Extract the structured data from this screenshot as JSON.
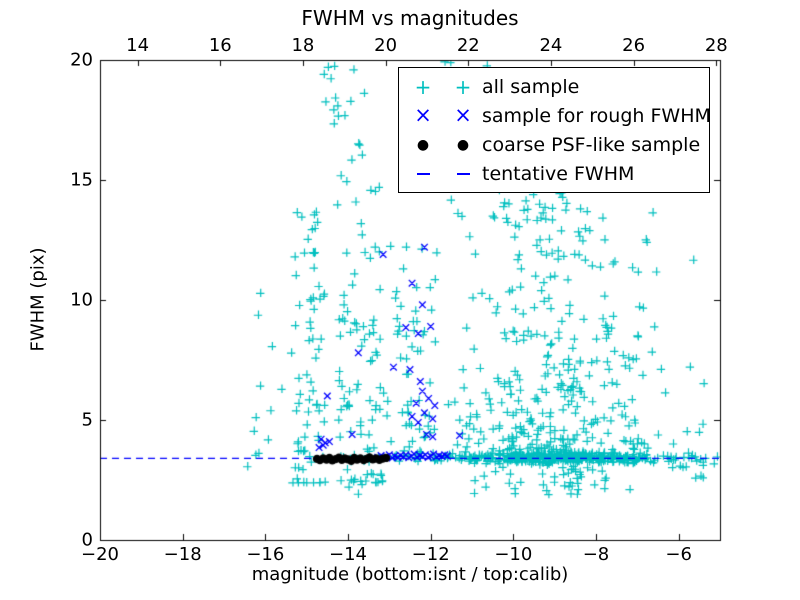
{
  "title": "FWHM vs magnitudes",
  "axes": {
    "xlabel": "magnitude (bottom:isnt / top:calib)",
    "ylabel": "FWHM (pix)",
    "x_bottom": {
      "range": [
        -20,
        -5
      ],
      "ticks": [
        {
          "v": -20,
          "label": "−20"
        },
        {
          "v": -18,
          "label": "−18"
        },
        {
          "v": -16,
          "label": "−16"
        },
        {
          "v": -14,
          "label": "−14"
        },
        {
          "v": -12,
          "label": "−12"
        },
        {
          "v": -10,
          "label": "−10"
        },
        {
          "v": -8,
          "label": "−8"
        },
        {
          "v": -6,
          "label": "−6"
        }
      ]
    },
    "x_top": {
      "range": [
        13.09,
        28.09
      ],
      "ticks": [
        {
          "v": 14,
          "label": "14"
        },
        {
          "v": 16,
          "label": "16"
        },
        {
          "v": 18,
          "label": "18"
        },
        {
          "v": 20,
          "label": "20"
        },
        {
          "v": 22,
          "label": "22"
        },
        {
          "v": 24,
          "label": "24"
        },
        {
          "v": 26,
          "label": "26"
        },
        {
          "v": 28,
          "label": "28"
        }
      ]
    },
    "y": {
      "range": [
        0,
        20
      ],
      "ticks": [
        {
          "v": 0,
          "label": "0"
        },
        {
          "v": 5,
          "label": "5"
        },
        {
          "v": 10,
          "label": "10"
        },
        {
          "v": 15,
          "label": "15"
        },
        {
          "v": 20,
          "label": "20"
        }
      ]
    }
  },
  "legend": {
    "items": [
      {
        "marker": "plus",
        "color": "#00bfbf",
        "label": "all sample"
      },
      {
        "marker": "x",
        "color": "#0000ff",
        "label": "sample for rough FWHM"
      },
      {
        "marker": "dot",
        "color": "#000000",
        "label": "coarse PSF-like sample"
      },
      {
        "marker": "dash",
        "color": "#0000ff",
        "label": "tentative FWHM"
      }
    ]
  },
  "chart_data": {
    "type": "scatter",
    "title": "FWHM vs magnitudes",
    "xlabel": "magnitude (bottom:isnt / top:calib)",
    "ylabel": "FWHM (pix)",
    "x_bottom_range": [
      -20,
      -5
    ],
    "x_top_range": [
      13.09,
      28.09
    ],
    "ylim": [
      0,
      20
    ],
    "grid": false,
    "legend_position": "upper right",
    "tentative_fwhm": 3.4,
    "seed": 7,
    "series": [
      {
        "name": "all sample",
        "marker": "+",
        "color": "#00bfbf",
        "note": "~1100-point dense cloud, summarized as density clusters (mag ranges on bottom isnt axis, FWHM in pix)",
        "clusters": [
          {
            "n": 13,
            "mag": [
              -16.45,
              -15.35
            ],
            "fwhm": [
              2.8,
              10.5
            ],
            "pow": 1.2
          },
          {
            "n": 72,
            "mag": [
              -15.35,
              -14.55
            ],
            "fwhm": [
              2.4,
              13.8
            ],
            "pow": 2.1
          },
          {
            "n": 6,
            "mag": [
              -14.85,
              -13.95
            ],
            "fwhm": [
              16.5,
              19.8
            ],
            "pow": 1
          },
          {
            "n": 95,
            "mag": [
              -14.3,
              -13.15
            ],
            "fwhm": [
              2.4,
              15.5
            ],
            "pow": 2.0
          },
          {
            "n": 12,
            "mag": [
              -14.35,
              -13.45
            ],
            "fwhm": [
              15.0,
              19.9
            ],
            "pow": 1
          },
          {
            "n": 16,
            "mag": [
              -13.15,
              -12.6
            ],
            "fwhm": [
              3.6,
              13.0
            ],
            "pow": 1.3
          },
          {
            "n": 42,
            "mag": [
              -12.6,
              -11.85
            ],
            "fwhm": [
              3.6,
              12.6
            ],
            "pow": 1.8
          },
          {
            "n": 430,
            "mag": [
              -11.8,
              -6.3
            ],
            "tri": true,
            "fwhm": [
              3.45,
              15.0
            ],
            "pow": 2.6
          },
          {
            "n": 28,
            "mag": [
              -11.7,
              -8.6
            ],
            "fwhm": [
              13.0,
              20.0
            ],
            "pow": 1
          },
          {
            "n": 18,
            "mag": [
              -7.3,
              -5.15
            ],
            "fwhm": [
              3.7,
              12.4
            ],
            "pow": 1.6
          },
          {
            "n": 120,
            "mag": [
              -12.95,
              -5.05
            ],
            "gauss": [
              3.42,
              0.09
            ]
          },
          {
            "n": 230,
            "mag": [
              -11.7,
              -6.5
            ],
            "tri": true,
            "gauss": [
              3.42,
              0.1
            ]
          },
          {
            "n": 45,
            "mag": [
              -11.3,
              -6.3
            ],
            "tri": true,
            "fwhm": [
              1.7,
              3.1
            ],
            "pow": 0.6
          },
          {
            "n": 8,
            "mag": [
              -6.3,
              -5.4
            ],
            "fwhm": [
              2.5,
              3.2
            ],
            "pow": 1
          },
          {
            "n": 4,
            "mag": [
              -14.2,
              -13.4
            ],
            "fwhm": [
              1.9,
              2.7
            ],
            "pow": 1
          }
        ]
      },
      {
        "name": "sample for rough FWHM",
        "marker": "x",
        "color": "#0000ff",
        "points": [
          [
            -14.7,
            3.85
          ],
          [
            -14.65,
            4.2
          ],
          [
            -14.6,
            3.95
          ],
          [
            -14.55,
            4.05
          ],
          [
            -14.45,
            4.1
          ],
          [
            -14.5,
            6.0
          ],
          [
            -13.9,
            4.4
          ],
          [
            -13.75,
            7.8
          ],
          [
            -13.15,
            11.9
          ],
          [
            -12.9,
            7.2
          ],
          [
            -12.6,
            8.85
          ],
          [
            -12.5,
            7.1
          ],
          [
            -12.45,
            10.7
          ],
          [
            -12.45,
            5.15
          ],
          [
            -12.35,
            5.7
          ],
          [
            -12.3,
            8.6
          ],
          [
            -12.3,
            4.9
          ],
          [
            -12.25,
            6.6
          ],
          [
            -12.2,
            9.8
          ],
          [
            -12.2,
            6.2
          ],
          [
            -12.15,
            12.2
          ],
          [
            -12.15,
            5.3
          ],
          [
            -12.1,
            4.4
          ],
          [
            -12.05,
            5.9
          ],
          [
            -12.0,
            8.9
          ],
          [
            -11.95,
            5.05
          ],
          [
            -11.95,
            4.3
          ],
          [
            -11.9,
            5.6
          ],
          [
            -11.3,
            4.35
          ],
          [
            -13.28,
            3.45
          ],
          [
            -13.2,
            3.52
          ],
          [
            -13.14,
            3.4
          ],
          [
            -13.07,
            3.48
          ],
          [
            -13.0,
            3.55
          ],
          [
            -12.93,
            3.42
          ],
          [
            -12.87,
            3.5
          ],
          [
            -12.8,
            3.44
          ],
          [
            -12.73,
            3.53
          ],
          [
            -12.66,
            3.46
          ],
          [
            -12.6,
            3.55
          ],
          [
            -12.53,
            3.43
          ],
          [
            -12.46,
            3.5
          ],
          [
            -12.4,
            3.58
          ],
          [
            -12.33,
            3.45
          ],
          [
            -12.26,
            3.52
          ],
          [
            -12.2,
            3.47
          ],
          [
            -12.13,
            3.55
          ],
          [
            -12.06,
            3.44
          ],
          [
            -12.0,
            3.5
          ],
          [
            -11.93,
            3.58
          ],
          [
            -11.86,
            3.46
          ],
          [
            -11.8,
            3.52
          ],
          [
            -11.73,
            3.48
          ],
          [
            -11.66,
            3.55
          ],
          [
            -11.6,
            3.5
          ]
        ]
      },
      {
        "name": "coarse PSF-like sample",
        "marker": "o",
        "color": "#000000",
        "points": [
          [
            -14.75,
            3.38
          ],
          [
            -14.68,
            3.33
          ],
          [
            -14.6,
            3.4
          ],
          [
            -14.52,
            3.35
          ],
          [
            -14.45,
            3.42
          ],
          [
            -14.38,
            3.32
          ],
          [
            -14.3,
            3.37
          ],
          [
            -14.22,
            3.43
          ],
          [
            -14.15,
            3.34
          ],
          [
            -14.08,
            3.4
          ],
          [
            -14.0,
            3.36
          ],
          [
            -13.92,
            3.3
          ],
          [
            -13.85,
            3.42
          ],
          [
            -13.78,
            3.35
          ],
          [
            -13.7,
            3.4
          ],
          [
            -13.62,
            3.33
          ],
          [
            -13.55,
            3.38
          ],
          [
            -13.48,
            3.44
          ],
          [
            -13.4,
            3.36
          ],
          [
            -13.32,
            3.4
          ],
          [
            -13.24,
            3.34
          ],
          [
            -13.16,
            3.39
          ],
          [
            -13.08,
            3.42
          ]
        ]
      },
      {
        "name": "tentative FWHM",
        "type": "hline",
        "y": 3.4,
        "style": "dashed",
        "color": "#0000ff"
      }
    ]
  }
}
